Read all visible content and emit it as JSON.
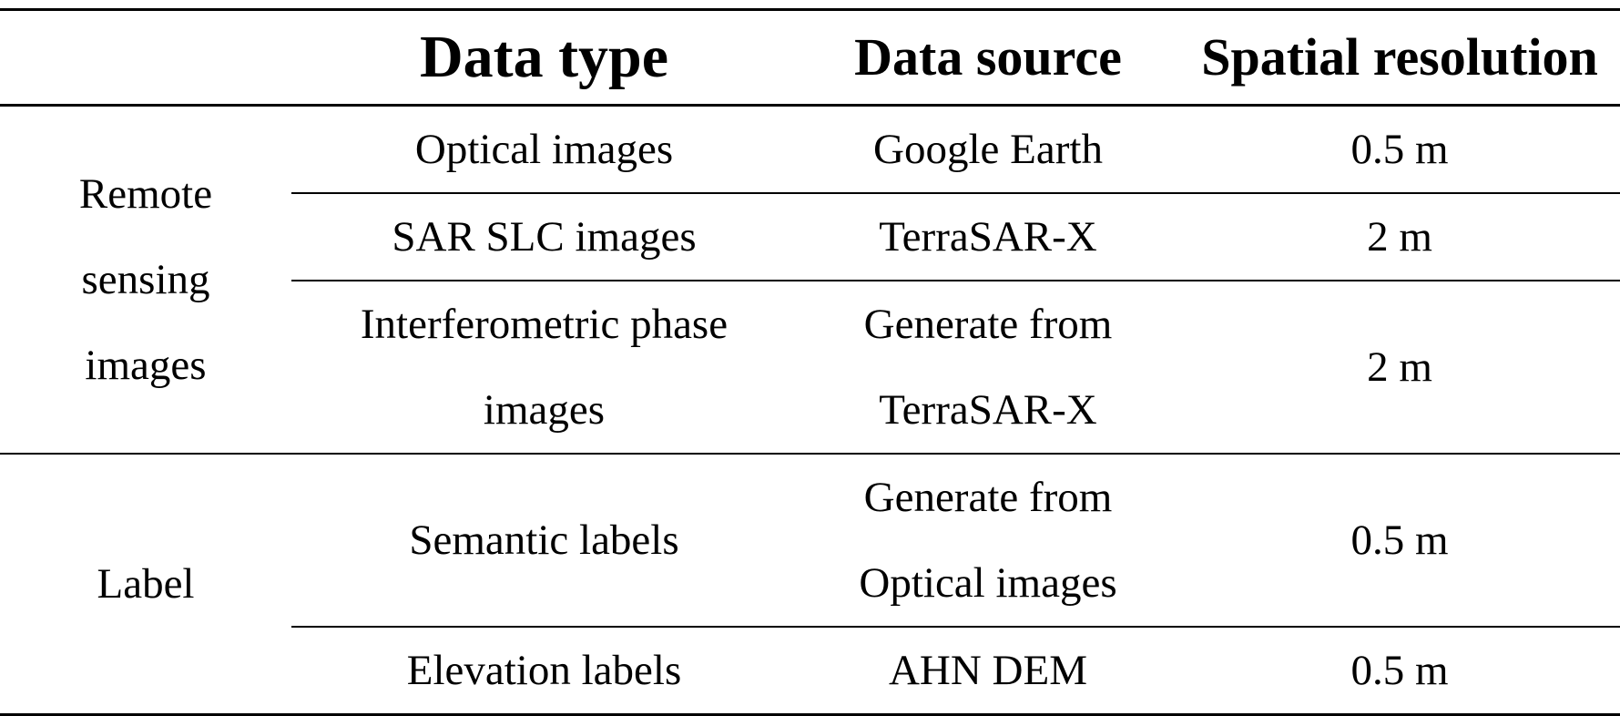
{
  "table": {
    "headers": [
      "",
      "Data type",
      "Data source",
      "Spatial resolution"
    ],
    "groups": [
      {
        "name_lines": [
          "Remote",
          "sensing",
          "images"
        ],
        "rows": [
          {
            "type_lines": [
              "Optical images"
            ],
            "source_lines": [
              "Google Earth"
            ],
            "resolution": "0.5 m"
          },
          {
            "type_lines": [
              "SAR SLC images"
            ],
            "source_lines": [
              "TerraSAR-X"
            ],
            "resolution": "2 m"
          },
          {
            "type_lines": [
              "Interferometric phase",
              "images"
            ],
            "source_lines": [
              "Generate from",
              "TerraSAR-X"
            ],
            "resolution": "2 m"
          }
        ]
      },
      {
        "name_lines": [
          "Label"
        ],
        "rows": [
          {
            "type_lines": [
              "Semantic labels"
            ],
            "source_lines": [
              "Generate from",
              "Optical images"
            ],
            "resolution": "0.5 m"
          },
          {
            "type_lines": [
              "Elevation labels"
            ],
            "source_lines": [
              "AHN DEM"
            ],
            "resolution": "0.5 m"
          }
        ]
      }
    ]
  }
}
